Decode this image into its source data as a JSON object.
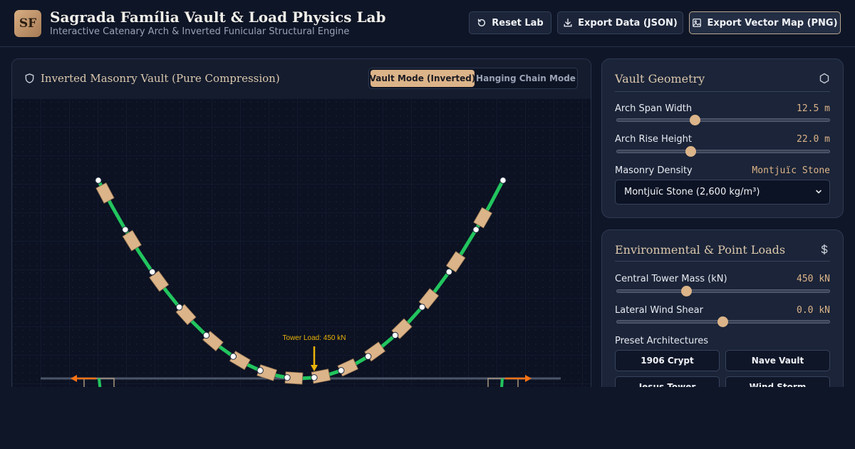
{
  "app": {
    "logo": "SF",
    "title": "Sagrada Família Vault & Load Physics Lab",
    "subtitle": "Interactive Catenary Arch & Inverted Funicular Structural Engine"
  },
  "toolbar": {
    "reset_label": "Reset Lab",
    "export_json_label": "Export Data (JSON)",
    "export_png_label": "Export Vector Map (PNG)"
  },
  "viewport": {
    "title": "Inverted Masonry Vault (Pure Compression)",
    "mode_active": "Vault Mode (Inverted)",
    "mode_inactive": "Hanging Chain Mode",
    "tower_load_label": "Tower Load: 450 kN"
  },
  "geometry": {
    "title": "Vault Geometry",
    "span_label": "Arch Span Width",
    "span_value": "12.5 m",
    "span_fraction": 0.37,
    "rise_label": "Arch Rise Height",
    "rise_value": "22.0 m",
    "rise_fraction": 0.35,
    "density_label": "Masonry Density",
    "density_value": "Montjuïc Stone",
    "density_option": "Montjuïc Stone (2,600 kg/m³)"
  },
  "loads": {
    "title": "Environmental & Point Loads",
    "tower_label": "Central Tower Mass (kN)",
    "tower_value": "450 kN",
    "tower_fraction": 0.33,
    "wind_label": "Lateral Wind Shear",
    "wind_value": "0.0 kN",
    "wind_fraction": 0.5,
    "presets_label": "Preset Architectures",
    "presets": [
      "1906 Crypt",
      "Nave Vault",
      "Jesus Tower",
      "Wind Storm"
    ]
  },
  "colors": {
    "accent": "#dcb489",
    "chain": "#22c55e",
    "load": "#eab308",
    "thrust": "#f97316"
  }
}
